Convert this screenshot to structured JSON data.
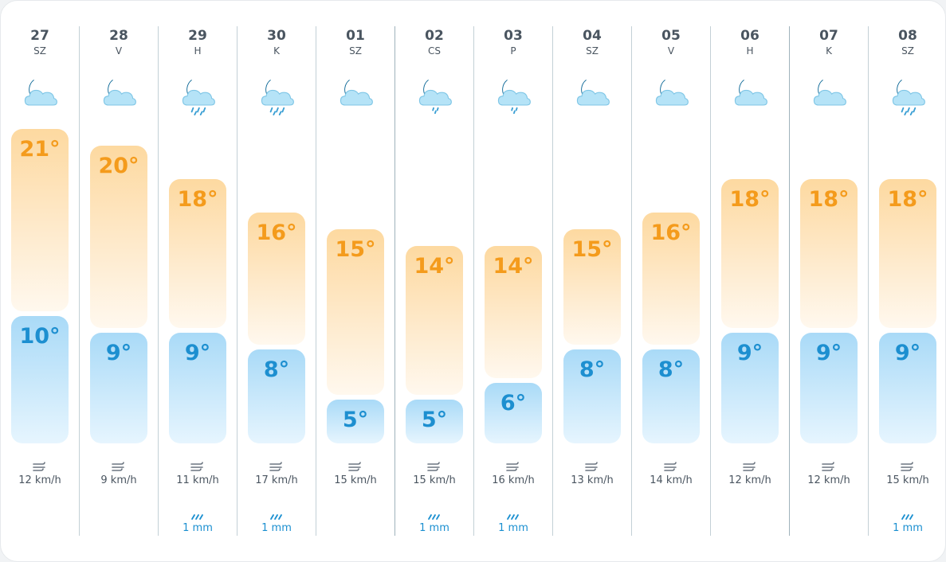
{
  "colors": {
    "high": "#f49b1c",
    "low": "#1d8fd0",
    "rain": "#1a8fd0",
    "text": "#4a5560"
  },
  "days": [
    {
      "date": "27",
      "dow": "SZ",
      "icon": "moon-cloud-icon",
      "high": "21°",
      "low": "10°",
      "high_value": 21,
      "low_value": 10,
      "wind": "12 km/h",
      "rain": ""
    },
    {
      "date": "28",
      "dow": "V",
      "icon": "moon-cloud-icon",
      "high": "20°",
      "low": "9°",
      "high_value": 20,
      "low_value": 9,
      "wind": "9 km/h",
      "rain": ""
    },
    {
      "date": "29",
      "dow": "H",
      "icon": "moon-cloud-rain-icon",
      "high": "18°",
      "low": "9°",
      "high_value": 18,
      "low_value": 9,
      "wind": "11 km/h",
      "rain": "1 mm"
    },
    {
      "date": "30",
      "dow": "K",
      "icon": "moon-cloud-rain-icon",
      "high": "16°",
      "low": "8°",
      "high_value": 16,
      "low_value": 8,
      "wind": "17 km/h",
      "rain": "1 mm"
    },
    {
      "date": "01",
      "dow": "SZ",
      "icon": "moon-cloud-icon",
      "high": "15°",
      "low": "5°",
      "high_value": 15,
      "low_value": 5,
      "wind": "15 km/h",
      "rain": ""
    },
    {
      "date": "02",
      "dow": "CS",
      "icon": "moon-cloud-drizzle-icon",
      "high": "14°",
      "low": "5°",
      "high_value": 14,
      "low_value": 5,
      "wind": "15 km/h",
      "rain": "1 mm"
    },
    {
      "date": "03",
      "dow": "P",
      "icon": "moon-cloud-drizzle-icon",
      "high": "14°",
      "low": "6°",
      "high_value": 14,
      "low_value": 6,
      "wind": "16 km/h",
      "rain": "1 mm"
    },
    {
      "date": "04",
      "dow": "SZ",
      "icon": "moon-cloud-icon",
      "high": "15°",
      "low": "8°",
      "high_value": 15,
      "low_value": 8,
      "wind": "13 km/h",
      "rain": ""
    },
    {
      "date": "05",
      "dow": "V",
      "icon": "moon-cloud-icon",
      "high": "16°",
      "low": "8°",
      "high_value": 16,
      "low_value": 8,
      "wind": "14 km/h",
      "rain": ""
    },
    {
      "date": "06",
      "dow": "H",
      "icon": "moon-cloud-icon",
      "high": "18°",
      "low": "9°",
      "high_value": 18,
      "low_value": 9,
      "wind": "12 km/h",
      "rain": ""
    },
    {
      "date": "07",
      "dow": "K",
      "icon": "moon-cloud-icon",
      "high": "18°",
      "low": "9°",
      "high_value": 18,
      "low_value": 9,
      "wind": "12 km/h",
      "rain": ""
    },
    {
      "date": "08",
      "dow": "SZ",
      "icon": "moon-cloud-rain-icon",
      "high": "18°",
      "low": "9°",
      "high_value": 18,
      "low_value": 9,
      "wind": "15 km/h",
      "rain": "1 mm"
    }
  ]
}
